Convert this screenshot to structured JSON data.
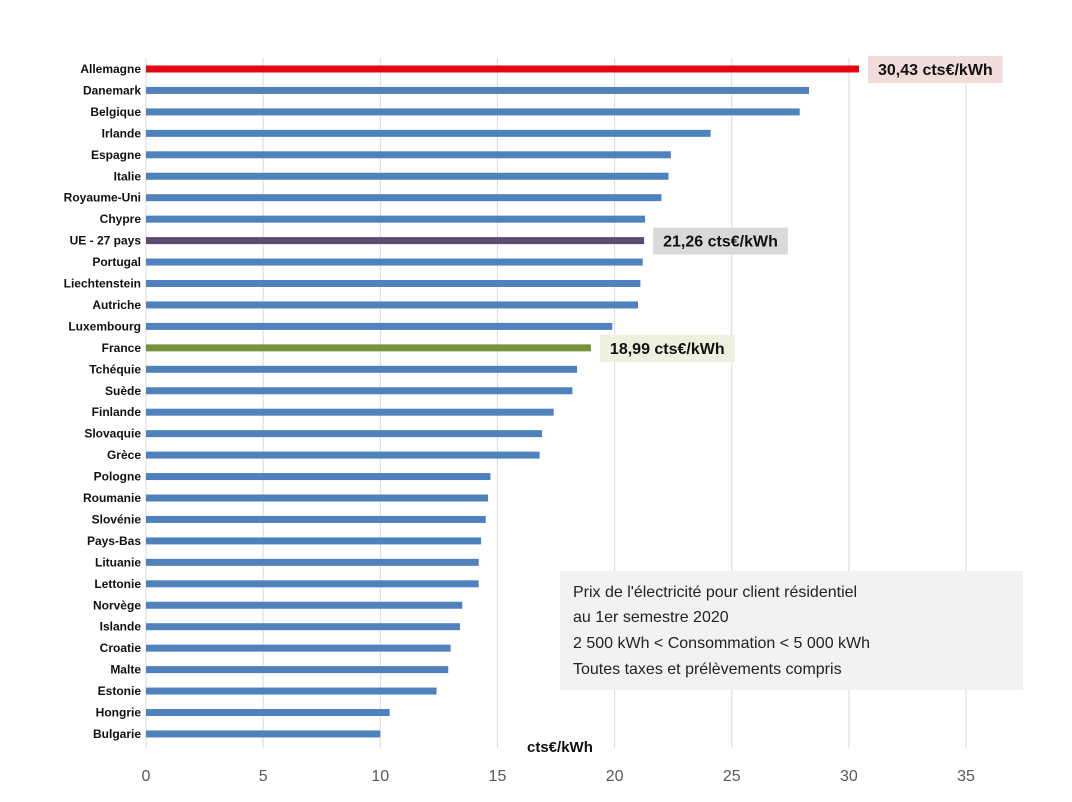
{
  "chart_data": {
    "type": "bar",
    "orientation": "horizontal",
    "title": "",
    "xlabel": "cts€/kWh",
    "ylabel": "",
    "xlim": [
      0,
      35
    ],
    "x_ticks": [
      0,
      5,
      10,
      15,
      20,
      25,
      30,
      35
    ],
    "grid": "vertical",
    "categories": [
      "Allemagne",
      "Danemark",
      "Belgique",
      "Irlande",
      "Espagne",
      "Italie",
      "Royaume-Uni",
      "Chypre",
      "UE - 27 pays",
      "Portugal",
      "Liechtenstein",
      "Autriche",
      "Luxembourg",
      "France",
      "Tchéquie",
      "Suède",
      "Finlande",
      "Slovaquie",
      "Grèce",
      "Pologne",
      "Roumanie",
      "Slovénie",
      "Pays-Bas",
      "Lituanie",
      "Lettonie",
      "Norvège",
      "Islande",
      "Croatie",
      "Malte",
      "Estonie",
      "Hongrie",
      "Bulgarie"
    ],
    "values": [
      30.43,
      28.3,
      27.9,
      24.1,
      22.4,
      22.3,
      22.0,
      21.3,
      21.26,
      21.2,
      21.1,
      21.0,
      19.9,
      18.99,
      18.4,
      18.2,
      17.4,
      16.9,
      16.8,
      14.7,
      14.6,
      14.5,
      14.3,
      14.2,
      14.2,
      13.5,
      13.4,
      13.0,
      12.9,
      12.4,
      10.4,
      10.0
    ],
    "default_color": "#4f81bd",
    "highlight_colors": {
      "Allemagne": "#e30613",
      "UE - 27 pays": "#5b4a72",
      "France": "#76923c"
    },
    "annotations": [
      {
        "category": "Allemagne",
        "text": "30,43 cts€/kWh",
        "background": "#f2dcdb"
      },
      {
        "category": "UE - 27 pays",
        "text": "21,26 cts€/kWh",
        "background": "#d9d9d9"
      },
      {
        "category": "France",
        "text": "18,99 cts€/kWh",
        "background": "#ebf1de"
      }
    ],
    "info_box": {
      "lines": [
        "Prix de l'électricité pour client résidentiel",
        "au 1er semestre 2020",
        "2 500 kWh < Consommation < 5 000 kWh",
        "Toutes taxes et prélèvements compris"
      ],
      "background": "#f2f2f2"
    }
  }
}
